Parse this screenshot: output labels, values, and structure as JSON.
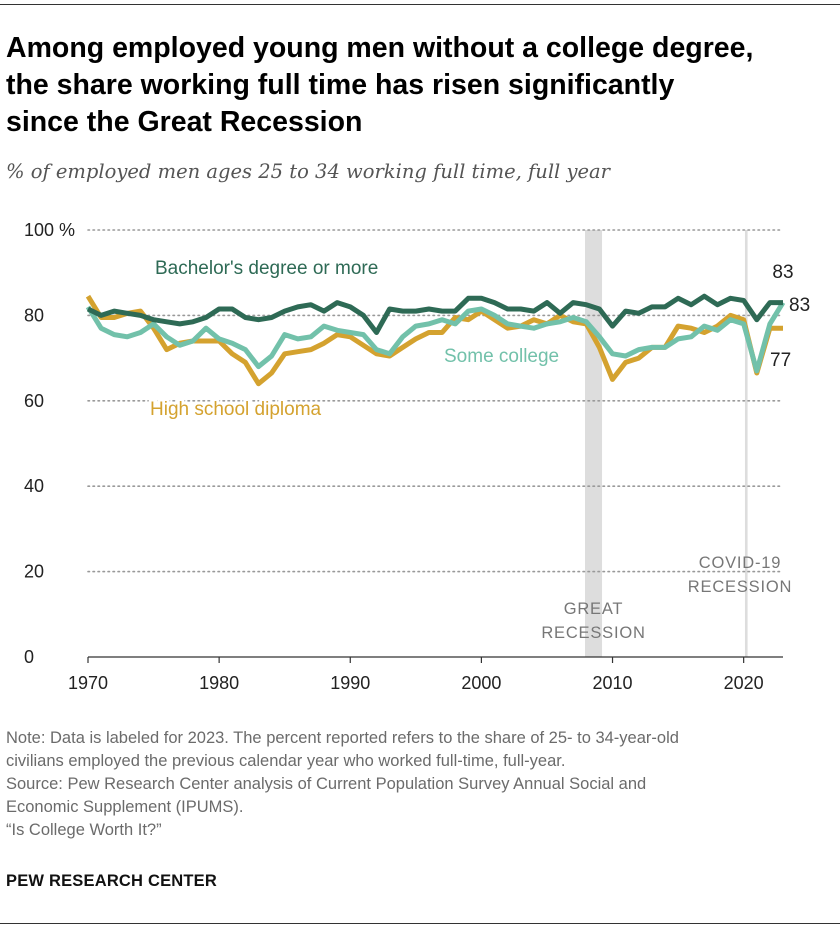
{
  "header": {
    "title_lines": [
      "Among employed young men without a college degree,",
      "the share working full time has risen significantly",
      "since the Great Recession"
    ],
    "subtitle": "% of employed men ages 25 to 34 working full time, full year"
  },
  "colors": {
    "bachelor": "#2e6a55",
    "some_college": "#72c1aa",
    "high_school": "#d4a22f",
    "grid": "#999999",
    "recession_band": "#dddddd",
    "recession_label": "#777777"
  },
  "chart_data": {
    "type": "line",
    "title": "",
    "xlabel": "",
    "ylabel": "",
    "xlim": [
      1970,
      2023
    ],
    "ylim": [
      0,
      100
    ],
    "y_ticks": [
      0,
      20,
      40,
      60,
      80,
      100
    ],
    "y_tick_labels": [
      "0",
      "20",
      "40",
      "60",
      "80",
      "100 %"
    ],
    "x_ticks": [
      1970,
      1980,
      1990,
      2000,
      2010,
      2020
    ],
    "x_tick_labels": [
      "1970",
      "1980",
      "1990",
      "2000",
      "2010",
      "2020"
    ],
    "grid": "horizontal dotted",
    "x": [
      1970,
      1971,
      1972,
      1973,
      1974,
      1975,
      1976,
      1977,
      1978,
      1979,
      1980,
      1981,
      1982,
      1983,
      1984,
      1985,
      1986,
      1987,
      1988,
      1989,
      1990,
      1991,
      1992,
      1993,
      1994,
      1995,
      1996,
      1997,
      1998,
      1999,
      2000,
      2001,
      2002,
      2003,
      2004,
      2005,
      2006,
      2007,
      2008,
      2009,
      2010,
      2011,
      2012,
      2013,
      2014,
      2015,
      2016,
      2017,
      2018,
      2019,
      2020,
      2021,
      2022,
      2023
    ],
    "series": [
      {
        "name": "Bachelor's degree or more",
        "color_key": "bachelor",
        "values": [
          81.5,
          80,
          81,
          80.5,
          80,
          79,
          78.5,
          78,
          78.5,
          79.5,
          81.5,
          81.5,
          79.5,
          79,
          79.5,
          81,
          82,
          82.5,
          81,
          83,
          82,
          80,
          76,
          81.5,
          81,
          81,
          81.5,
          81,
          81,
          84,
          84,
          83,
          81.5,
          81.5,
          81,
          83,
          80.5,
          83,
          82.5,
          81.5,
          77.5,
          81,
          80.5,
          82,
          82,
          84,
          82.5,
          84.5,
          82.5,
          84,
          83.5,
          79,
          83,
          83
        ],
        "end_label": "83"
      },
      {
        "name": "Some college",
        "color_key": "some_college",
        "values": [
          82,
          77,
          75.5,
          75,
          76,
          78,
          75,
          73,
          74,
          77,
          74.5,
          73.5,
          72,
          68,
          70.5,
          75.5,
          74.5,
          75,
          77.5,
          76.5,
          76,
          75.5,
          72,
          71,
          75,
          77.5,
          78,
          79,
          78,
          81,
          81.5,
          80,
          78,
          77.5,
          77,
          78,
          78.5,
          79.5,
          78.5,
          75,
          71,
          70.5,
          72,
          72.5,
          72.5,
          74.5,
          75,
          77.5,
          76.5,
          79,
          78,
          67,
          78,
          83
        ],
        "end_label": "83"
      },
      {
        "name": "High school diploma",
        "color_key": "high_school",
        "values": [
          84.5,
          79.5,
          79.5,
          80.5,
          81,
          77,
          72,
          73.5,
          74,
          74,
          74,
          71,
          69,
          64,
          66.5,
          71,
          71.5,
          72,
          73.5,
          75.5,
          75,
          73,
          71,
          70.5,
          72.5,
          74.5,
          76,
          76,
          79.5,
          79,
          81,
          79,
          77,
          77.5,
          79,
          78,
          80,
          78.5,
          78,
          72.5,
          65,
          69,
          70,
          72.5,
          72.5,
          77.5,
          77,
          76,
          77.5,
          80,
          79,
          66.5,
          77,
          77
        ],
        "end_label": "77"
      }
    ],
    "series_labels": [
      {
        "text": "Bachelor's degree or more",
        "color_key": "bachelor"
      },
      {
        "text": "Some college",
        "color_key": "some_college"
      },
      {
        "text": "High school diploma",
        "color_key": "high_school"
      }
    ],
    "recessions": [
      {
        "name": "great",
        "start": 2007.9,
        "end": 2009.2,
        "label_lines": [
          "GREAT",
          "RECESSION"
        ]
      },
      {
        "name": "covid",
        "start": 2020.1,
        "end": 2020.3,
        "label_lines": [
          "COVID-19",
          "RECESSION"
        ]
      }
    ]
  },
  "footer": {
    "notes": [
      "Note: Data is labeled for 2023. The percent reported refers to the share of 25- to 34-year-old",
      "civilians employed the previous calendar year who worked full-time, full-year.",
      "Source: Pew Research Center analysis of Current Population Survey Annual Social and",
      "Economic Supplement (IPUMS).",
      "“Is College Worth It?”"
    ],
    "brand": "PEW RESEARCH CENTER"
  }
}
